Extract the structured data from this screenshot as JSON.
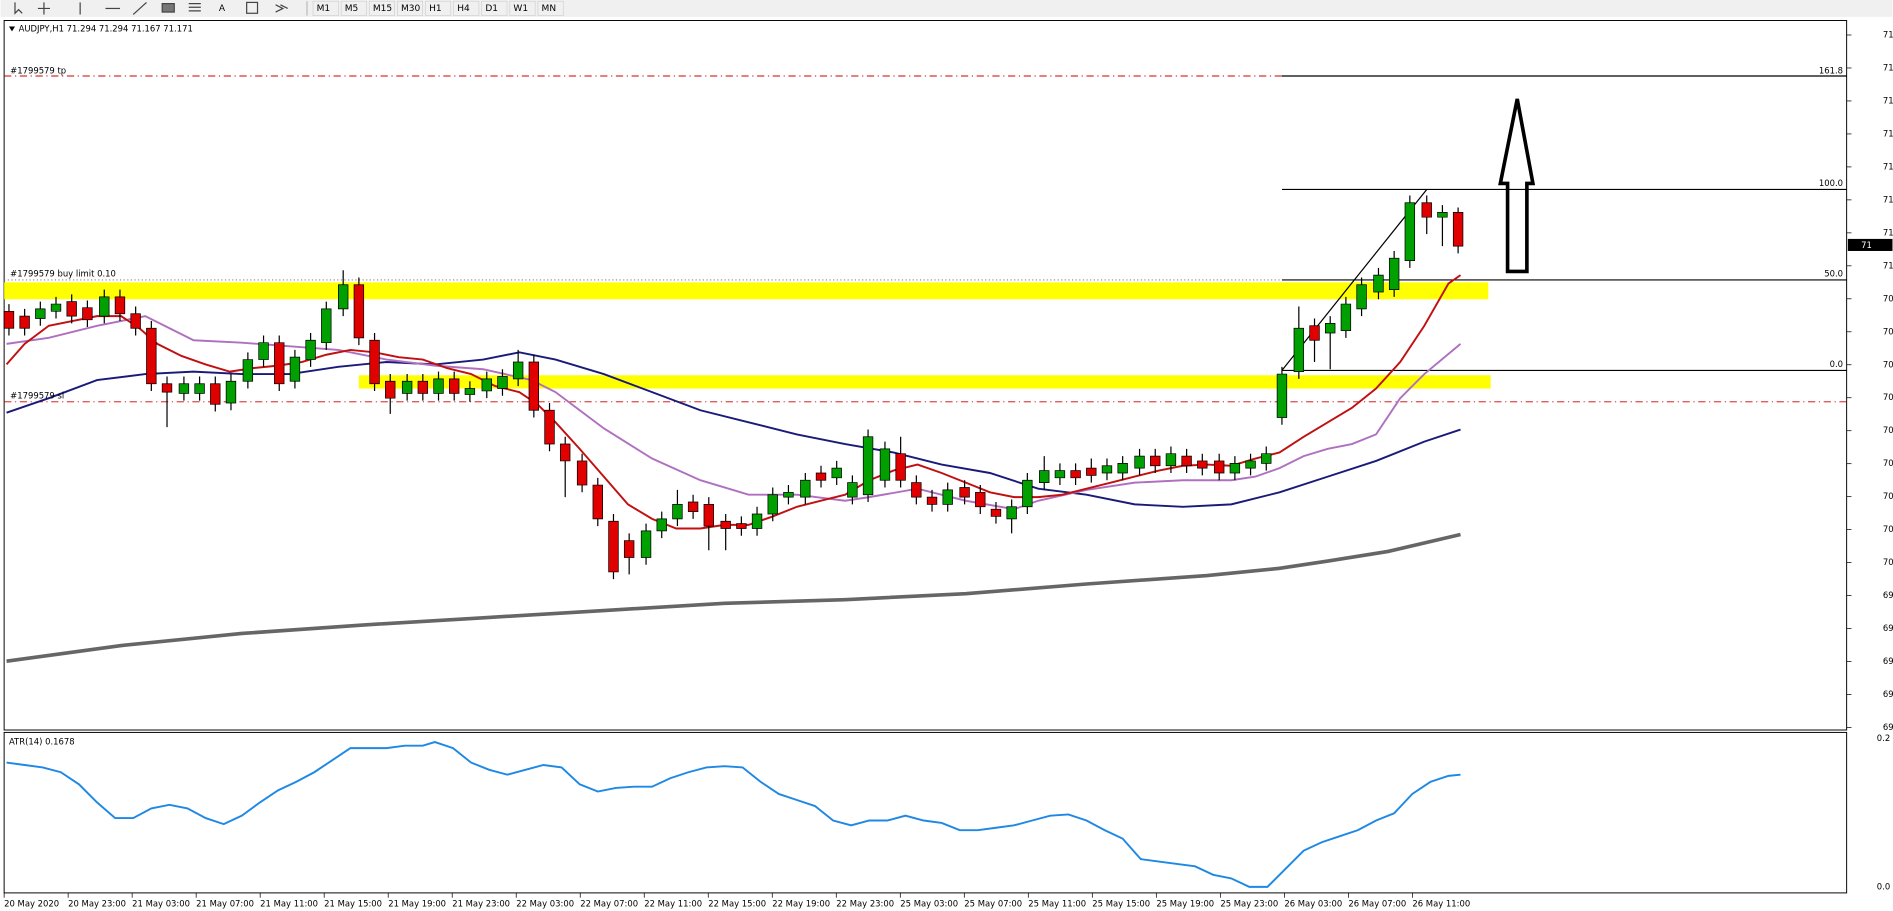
{
  "toolbar": {
    "timeframes": [
      "M1",
      "M5",
      "M15",
      "M30",
      "H1",
      "H4",
      "D1",
      "W1",
      "MN"
    ]
  },
  "chart": {
    "symbol_info": "AUDJPY,H1  71.294 71.294 71.167 71.171",
    "order_labels": {
      "tp": "#1799579 tp",
      "buy_limit": "#1799579 buy limit 0.10",
      "sl": "#1799579 sl"
    },
    "fib_levels": [
      "161.8",
      "100.0",
      "50.0",
      "0.0"
    ],
    "price_axis": [
      "71",
      "71",
      "71",
      "71",
      "71",
      "71",
      "71",
      "71",
      "70",
      "70",
      "70",
      "70",
      "70",
      "70",
      "70",
      "70",
      "70",
      "69",
      "69",
      "69",
      "69",
      "69"
    ],
    "current_price": "71",
    "time_axis": [
      "20 May 2020",
      "20 May 23:00",
      "21 May 03:00",
      "21 May 07:00",
      "21 May 11:00",
      "21 May 15:00",
      "21 May 19:00",
      "21 May 23:00",
      "22 May 03:00",
      "22 May 07:00",
      "22 May 11:00",
      "22 May 15:00",
      "22 May 19:00",
      "22 May 23:00",
      "25 May 03:00",
      "25 May 07:00",
      "25 May 11:00",
      "25 May 15:00",
      "25 May 19:00",
      "25 May 23:00",
      "26 May 03:00",
      "26 May 07:00",
      "26 May 11:00"
    ]
  },
  "indicator": {
    "label": "ATR(14) 0.1678",
    "axis": [
      "0.2",
      "0.0"
    ]
  }
}
